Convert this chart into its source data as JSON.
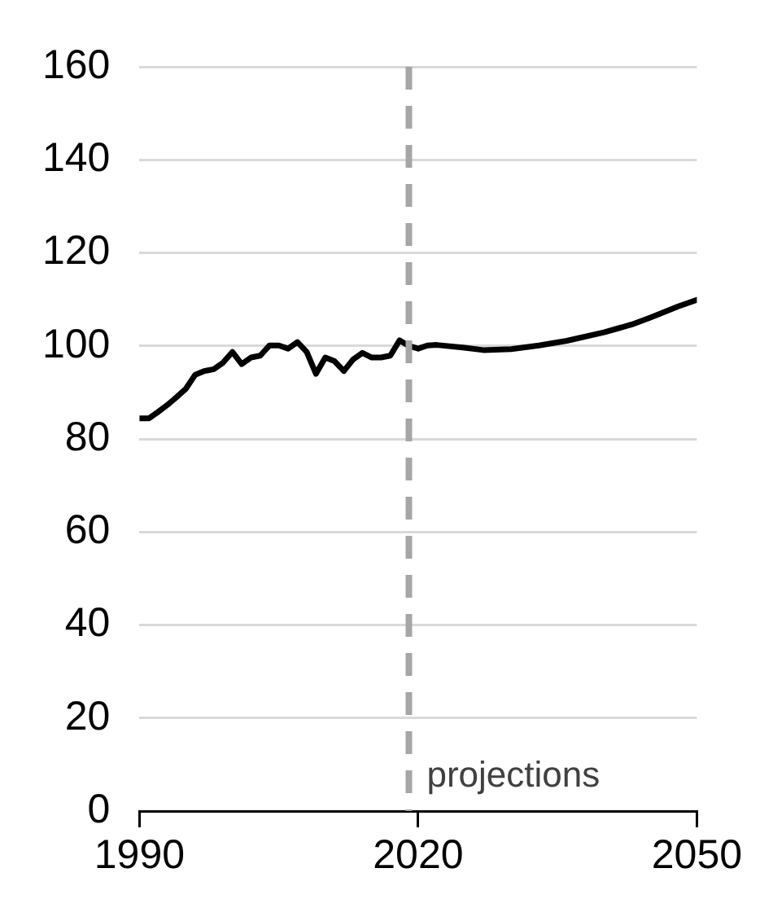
{
  "chart_data": {
    "type": "line",
    "x": [
      1990,
      1991,
      1992,
      1993,
      1994,
      1995,
      1996,
      1997,
      1998,
      1999,
      2000,
      2001,
      2002,
      2003,
      2004,
      2005,
      2006,
      2007,
      2008,
      2009,
      2010,
      2011,
      2012,
      2013,
      2014,
      2015,
      2016,
      2017,
      2018,
      2019,
      2020,
      2021,
      2022,
      2025,
      2027,
      2030,
      2033,
      2036,
      2040,
      2043,
      2045,
      2048,
      2050
    ],
    "series": [
      {
        "color": "#000000",
        "values": [
          84.4,
          84.4,
          85.8,
          87.3,
          89,
          90.8,
          93.8,
          94.6,
          95,
          96.4,
          98.7,
          96.1,
          97.5,
          97.9,
          100.1,
          100.1,
          99.4,
          100.8,
          98.7,
          94,
          97.5,
          96.7,
          94.6,
          97.1,
          98.5,
          97.5,
          97.5,
          97.9,
          101.2,
          100,
          99.4,
          100.1,
          100.2,
          99.6,
          99.1,
          99.3,
          100.1,
          101.1,
          102.9,
          104.6,
          106.1,
          108.5,
          109.9
        ]
      }
    ],
    "xlim": [
      1990,
      2050
    ],
    "xticks": [
      1990,
      2020,
      2050
    ],
    "ylim": [
      0,
      160
    ],
    "yticks": [
      0,
      20,
      40,
      60,
      80,
      100,
      120,
      140,
      160
    ],
    "grid": "y",
    "marker": "none",
    "line_style": "solid",
    "legend": false,
    "ref_lines": [
      {
        "axis": "x",
        "value": 2019,
        "label": "projections",
        "color": "#a6a6a6",
        "line_style": "dashed"
      }
    ]
  }
}
